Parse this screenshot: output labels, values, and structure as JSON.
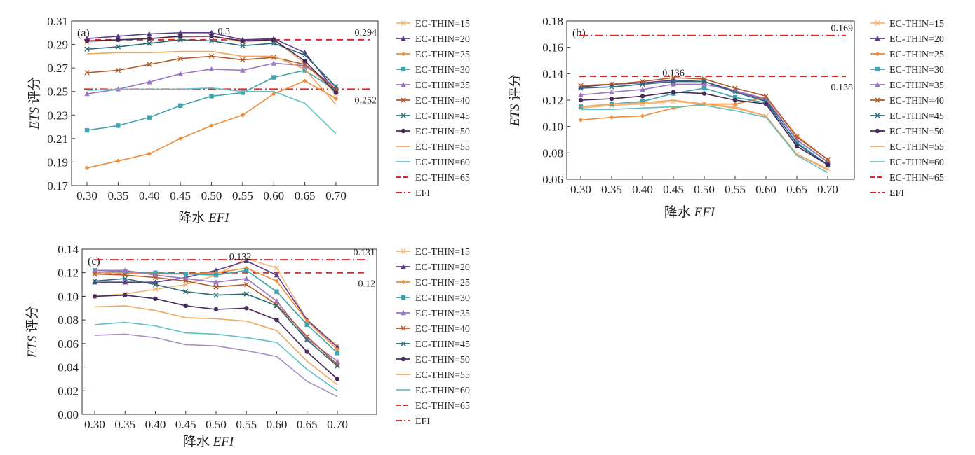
{
  "figure": {
    "series_names": [
      "EC-THIN=15",
      "EC-THIN=20",
      "EC-THIN=25",
      "EC-THIN=30",
      "EC-THIN=35",
      "EC-THIN=40",
      "EC-THIN=45",
      "EC-THIN=50",
      "EC-THIN=55",
      "EC-THIN=60",
      "EC-THIN=65",
      "EFI"
    ],
    "series_colors": [
      "#f2b77b",
      "#5b3c8c",
      "#ef8c3a",
      "#3ea3ad",
      "#9a76c2",
      "#b15a2a",
      "#2d6b78",
      "#452a5a",
      "#f3a65e",
      "#62c0c6",
      "#a78bc4",
      "#e02a2a"
    ],
    "series_markers": [
      "x",
      "triangle",
      "diamond",
      "square",
      "triangle",
      "x",
      "x",
      "circle",
      "none",
      "none",
      "none",
      "none"
    ],
    "reference_color": "#e02a2a"
  },
  "chart_data": [
    {
      "type": "line",
      "panel_label": "(a)",
      "xlabel_cn": "降水",
      "xlabel_en": "EFI",
      "ylabel_en": "ETS",
      "ylabel_cn": "评分",
      "x": [
        0.3,
        0.35,
        0.4,
        0.45,
        0.5,
        0.55,
        0.6,
        0.65,
        0.7
      ],
      "x_ticks": [
        "0.30",
        "0.35",
        "0.40",
        "0.45",
        "0.50",
        "0.55",
        "0.60",
        "0.65",
        "0.70"
      ],
      "ylim": [
        0.17,
        0.31
      ],
      "y_ticks": [
        "0.17",
        "0.19",
        "0.21",
        "0.23",
        "0.25",
        "0.27",
        "0.29",
        "0.31"
      ],
      "series": [
        {
          "name": "EC-THIN=15",
          "values": [
            0.292,
            0.294,
            0.295,
            0.296,
            0.297,
            0.292,
            0.294,
            0.274,
            0.248
          ]
        },
        {
          "name": "EC-THIN=20",
          "values": [
            0.295,
            0.297,
            0.299,
            0.3,
            0.3,
            0.294,
            0.295,
            0.283,
            0.25
          ]
        },
        {
          "name": "EC-THIN=25",
          "values": [
            0.185,
            0.191,
            0.197,
            0.21,
            0.221,
            0.23,
            0.248,
            0.259,
            0.244
          ]
        },
        {
          "name": "EC-THIN=30",
          "values": [
            0.217,
            0.221,
            0.228,
            0.238,
            0.246,
            0.249,
            0.262,
            0.268,
            0.251
          ]
        },
        {
          "name": "EC-THIN=35",
          "values": [
            0.248,
            0.252,
            0.258,
            0.265,
            0.269,
            0.268,
            0.274,
            0.272,
            0.254
          ]
        },
        {
          "name": "EC-THIN=40",
          "values": [
            0.266,
            0.268,
            0.273,
            0.278,
            0.28,
            0.277,
            0.279,
            0.273,
            0.252
          ]
        },
        {
          "name": "EC-THIN=45",
          "values": [
            0.286,
            0.288,
            0.291,
            0.294,
            0.293,
            0.289,
            0.291,
            0.281,
            0.254
          ]
        },
        {
          "name": "EC-THIN=50",
          "values": [
            0.293,
            0.294,
            0.295,
            0.297,
            0.297,
            0.293,
            0.294,
            0.276,
            0.249
          ]
        },
        {
          "name": "EC-THIN=55",
          "values": [
            0.282,
            0.283,
            0.283,
            0.284,
            0.284,
            0.28,
            0.28,
            0.269,
            0.239
          ]
        },
        {
          "name": "EC-THIN=60",
          "values": [
            0.251,
            0.252,
            0.252,
            0.252,
            0.253,
            0.25,
            0.25,
            0.24,
            0.214
          ]
        }
      ],
      "reference_lines": [
        {
          "name": "EC-THIN=65",
          "style": "dashed",
          "y": 0.294,
          "label": "0.294"
        },
        {
          "name": "EFI",
          "style": "dashdot",
          "y": 0.252,
          "label": "0.252"
        }
      ],
      "annotations": [
        {
          "text": "0.3",
          "x": 0.52,
          "y": 0.301
        }
      ]
    },
    {
      "type": "line",
      "panel_label": "(b)",
      "xlabel_cn": "降水",
      "xlabel_en": "EFI",
      "ylabel_en": "ETS",
      "ylabel_cn": "评分",
      "x": [
        0.3,
        0.35,
        0.4,
        0.45,
        0.5,
        0.55,
        0.6,
        0.65,
        0.7
      ],
      "x_ticks": [
        "0.30",
        "0.35",
        "0.40",
        "0.45",
        "0.50",
        "0.55",
        "0.60",
        "0.65",
        "0.70"
      ],
      "ylim": [
        0.06,
        0.18
      ],
      "y_ticks": [
        "0.06",
        "0.08",
        "0.10",
        "0.12",
        "0.14",
        "0.16",
        "0.18"
      ],
      "series": [
        {
          "name": "EC-THIN=15",
          "values": [
            0.114,
            0.116,
            0.117,
            0.119,
            0.117,
            0.115,
            0.108,
            0.079,
            0.068
          ]
        },
        {
          "name": "EC-THIN=20",
          "values": [
            0.13,
            0.132,
            0.133,
            0.135,
            0.134,
            0.127,
            0.12,
            0.09,
            0.073
          ]
        },
        {
          "name": "EC-THIN=25",
          "values": [
            0.105,
            0.107,
            0.108,
            0.114,
            0.117,
            0.117,
            0.122,
            0.093,
            0.075
          ]
        },
        {
          "name": "EC-THIN=30",
          "values": [
            0.115,
            0.117,
            0.119,
            0.125,
            0.129,
            0.122,
            0.118,
            0.088,
            0.071
          ]
        },
        {
          "name": "EC-THIN=35",
          "values": [
            0.124,
            0.126,
            0.128,
            0.132,
            0.132,
            0.127,
            0.121,
            0.09,
            0.073
          ]
        },
        {
          "name": "EC-THIN=40",
          "values": [
            0.131,
            0.132,
            0.134,
            0.137,
            0.136,
            0.129,
            0.123,
            0.092,
            0.075
          ]
        },
        {
          "name": "EC-THIN=45",
          "values": [
            0.129,
            0.13,
            0.132,
            0.134,
            0.134,
            0.126,
            0.119,
            0.087,
            0.071
          ]
        },
        {
          "name": "EC-THIN=50",
          "values": [
            0.12,
            0.121,
            0.123,
            0.126,
            0.125,
            0.12,
            0.117,
            0.085,
            0.071
          ]
        },
        {
          "name": "EC-THIN=55",
          "values": [
            0.115,
            0.117,
            0.118,
            0.12,
            0.117,
            0.114,
            0.108,
            0.079,
            0.067
          ]
        },
        {
          "name": "EC-THIN=60",
          "values": [
            0.113,
            0.113,
            0.114,
            0.115,
            0.116,
            0.112,
            0.107,
            0.078,
            0.065
          ]
        }
      ],
      "reference_lines": [
        {
          "name": "EC-THIN=65",
          "style": "dashed",
          "y": 0.138,
          "label": "0.138"
        },
        {
          "name": "EFI",
          "style": "dashdot",
          "y": 0.169,
          "label": "0.169"
        }
      ],
      "annotations": [
        {
          "text": "0.136",
          "x": 0.45,
          "y": 0.1405
        }
      ]
    },
    {
      "type": "line",
      "panel_label": "(c)",
      "xlabel_cn": "降水",
      "xlabel_en": "EFI",
      "ylabel_en": "ETS",
      "ylabel_cn": "评分",
      "x": [
        0.3,
        0.35,
        0.4,
        0.45,
        0.5,
        0.55,
        0.6,
        0.65,
        0.7
      ],
      "x_ticks": [
        "0.30",
        "0.35",
        "0.40",
        "0.45",
        "0.50",
        "0.55",
        "0.60",
        "0.65",
        "0.70"
      ],
      "ylim": [
        0.0,
        0.14
      ],
      "y_ticks": [
        "0.00",
        "0.02",
        "0.04",
        "0.06",
        "0.08",
        "0.10",
        "0.12",
        "0.14"
      ],
      "series": [
        {
          "name": "EC-THIN=15",
          "values": [
            0.1,
            0.102,
            0.106,
            0.11,
            0.118,
            0.132,
            0.124,
            0.08,
            0.058
          ]
        },
        {
          "name": "EC-THIN=20",
          "values": [
            0.112,
            0.112,
            0.112,
            0.116,
            0.122,
            0.13,
            0.118,
            0.08,
            0.057
          ]
        },
        {
          "name": "EC-THIN=25",
          "values": [
            0.12,
            0.12,
            0.119,
            0.119,
            0.12,
            0.124,
            0.113,
            0.079,
            0.055
          ]
        },
        {
          "name": "EC-THIN=30",
          "values": [
            0.122,
            0.121,
            0.12,
            0.119,
            0.118,
            0.122,
            0.104,
            0.076,
            0.052
          ]
        },
        {
          "name": "EC-THIN=35",
          "values": [
            0.122,
            0.122,
            0.118,
            0.115,
            0.112,
            0.115,
            0.096,
            0.064,
            0.045
          ]
        },
        {
          "name": "EC-THIN=40",
          "values": [
            0.119,
            0.118,
            0.116,
            0.113,
            0.108,
            0.11,
            0.093,
            0.066,
            0.042
          ]
        },
        {
          "name": "EC-THIN=45",
          "values": [
            0.113,
            0.115,
            0.11,
            0.104,
            0.101,
            0.102,
            0.092,
            0.063,
            0.041
          ]
        },
        {
          "name": "EC-THIN=50",
          "values": [
            0.1,
            0.101,
            0.098,
            0.092,
            0.089,
            0.09,
            0.08,
            0.053,
            0.03
          ]
        },
        {
          "name": "EC-THIN=55",
          "values": [
            0.091,
            0.092,
            0.088,
            0.082,
            0.081,
            0.079,
            0.071,
            0.045,
            0.025
          ]
        },
        {
          "name": "EC-THIN=60",
          "values": [
            0.076,
            0.078,
            0.075,
            0.069,
            0.068,
            0.065,
            0.061,
            0.038,
            0.02
          ]
        },
        {
          "name": "EC-THIN=65",
          "values": [
            0.067,
            0.068,
            0.065,
            0.059,
            0.058,
            0.054,
            0.049,
            0.028,
            0.015
          ]
        }
      ],
      "reference_lines": [
        {
          "name": "EC-THIN=65",
          "style": "dashed",
          "y": 0.12,
          "label": "0.12"
        },
        {
          "name": "EFI",
          "style": "dashdot",
          "y": 0.131,
          "label": "0.131"
        }
      ],
      "annotations": [
        {
          "text": "0.132",
          "x": 0.54,
          "y": 0.1335
        }
      ]
    }
  ]
}
